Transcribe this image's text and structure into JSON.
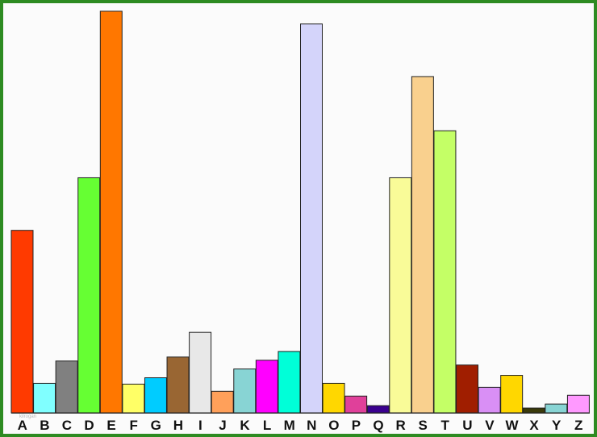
{
  "chart_data": {
    "type": "bar",
    "categories": [
      "A",
      "B",
      "C",
      "D",
      "E",
      "F",
      "G",
      "H",
      "I",
      "J",
      "K",
      "L",
      "M",
      "N",
      "O",
      "P",
      "Q",
      "R",
      "S",
      "T",
      "U",
      "V",
      "W",
      "X",
      "Y",
      "Z"
    ],
    "values": [
      229,
      37,
      65,
      295,
      504,
      36,
      44,
      70,
      101,
      27,
      55,
      66,
      77,
      488,
      37,
      21,
      9,
      295,
      422,
      354,
      60,
      32,
      47,
      6,
      11,
      22
    ],
    "ylim": [
      0,
      510
    ],
    "grid": false,
    "legend": "none",
    "title": "",
    "xlabel": "",
    "ylabel": "",
    "colors": [
      "#ff3a00",
      "#80ffff",
      "#808080",
      "#66ff33",
      "#ff7700",
      "#ffff66",
      "#00ccff",
      "#996633",
      "#e8e8e8",
      "#ffa05a",
      "#88d4d4",
      "#ff00ff",
      "#00ffd8",
      "#d4d4fa",
      "#ffd700",
      "#e0409a",
      "#3a008f",
      "#f9fb98",
      "#f9d08e",
      "#c4ff66",
      "#a01e00",
      "#d98ff5",
      "#ffd700",
      "#3a3a0a",
      "#88d4d4",
      "#ff99ff"
    ]
  },
  "watermark": "kilrogan",
  "frame_color": "#2e8b22"
}
